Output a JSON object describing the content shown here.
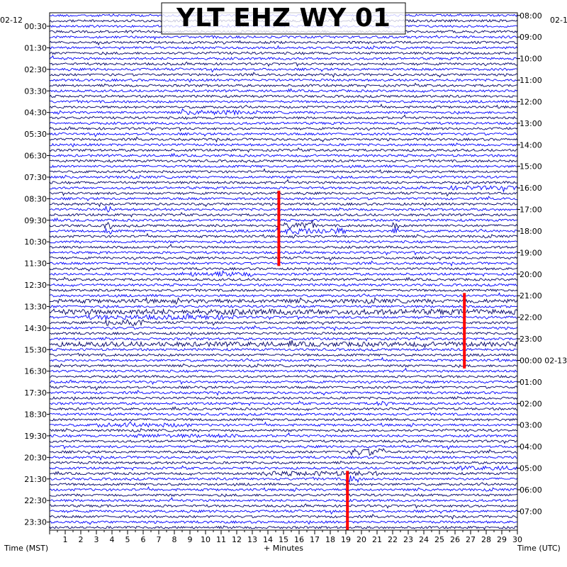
{
  "chart_data": {
    "type": "line",
    "title": "YLT EHZ WY 01",
    "xlabel": "+ Minutes",
    "left_axis_title": "Time (MST)",
    "right_axis_title": "Time (UTC)",
    "left_date": "02-12",
    "right_date": "02-1",
    "right_date_rollover": "02-13",
    "x_ticks": [
      "1",
      "2",
      "3",
      "4",
      "5",
      "6",
      "7",
      "8",
      "9",
      "10",
      "11",
      "12",
      "13",
      "14",
      "15",
      "16",
      "17",
      "18",
      "19",
      "20",
      "21",
      "22",
      "23",
      "24",
      "25",
      "26",
      "27",
      "28",
      "29",
      "30"
    ],
    "xlim": [
      0,
      30
    ],
    "rows_per_hour": 4,
    "left_time_labels": [
      "00:30",
      "01:30",
      "02:30",
      "03:30",
      "04:30",
      "05:30",
      "06:30",
      "07:30",
      "08:30",
      "09:30",
      "10:30",
      "11:30",
      "12:30",
      "13:30",
      "14:30",
      "15:30",
      "16:30",
      "17:30",
      "18:30",
      "19:30",
      "20:30",
      "21:30",
      "22:30",
      "23:30"
    ],
    "right_time_labels": [
      "08:00",
      "09:00",
      "10:00",
      "11:00",
      "12:00",
      "13:00",
      "14:00",
      "15:00",
      "16:00",
      "17:00",
      "18:00",
      "19:00",
      "20:00",
      "21:00",
      "22:00",
      "23:00",
      "00:00 02-13",
      "01:00",
      "02:00",
      "03:00",
      "04:00",
      "05:00",
      "06:00",
      "07:00"
    ],
    "trace_colors": [
      "#0000ff",
      "#000066"
    ],
    "event_color": "#ff0000",
    "events": [
      {
        "minute": 14.7,
        "row_start": 33,
        "row_end": 46
      },
      {
        "minute": 26.6,
        "row_start": 52,
        "row_end": 65
      },
      {
        "minute": 19.1,
        "row_start": 85,
        "row_end": 95
      }
    ],
    "activity": [
      {
        "row": 18,
        "minute_start": 8.5,
        "minute_end": 12.5,
        "level": 2.0
      },
      {
        "row": 32,
        "minute_start": 25.5,
        "minute_end": 30,
        "level": 1.8
      },
      {
        "row": 36,
        "minute_start": 3.6,
        "minute_end": 4.0,
        "level": 3.0
      },
      {
        "row": 39,
        "minute_start": 3.5,
        "minute_end": 4.0,
        "level": 3.0
      },
      {
        "row": 39,
        "minute_start": 14.6,
        "minute_end": 17,
        "level": 2.8
      },
      {
        "row": 39,
        "minute_start": 22,
        "minute_end": 22.4,
        "level": 3.0
      },
      {
        "row": 40,
        "minute_start": 3.5,
        "minute_end": 4.0,
        "level": 3.0
      },
      {
        "row": 40,
        "minute_start": 14.5,
        "minute_end": 19,
        "level": 2.6
      },
      {
        "row": 40,
        "minute_start": 22,
        "minute_end": 22.4,
        "level": 3.0
      },
      {
        "row": 48,
        "minute_start": 8.5,
        "minute_end": 13,
        "level": 2.0
      },
      {
        "row": 53,
        "minute_start": 0.5,
        "minute_end": 30,
        "level": 1.7
      },
      {
        "row": 55,
        "minute_start": 0.5,
        "minute_end": 30,
        "level": 2.3
      },
      {
        "row": 56,
        "minute_start": 2,
        "minute_end": 12,
        "level": 2.0
      },
      {
        "row": 57,
        "minute_start": 3.5,
        "minute_end": 6,
        "level": 2.8
      },
      {
        "row": 61,
        "minute_start": 0.5,
        "minute_end": 30,
        "level": 2.0
      },
      {
        "row": 72,
        "minute_start": 21,
        "minute_end": 22,
        "level": 2.0
      },
      {
        "row": 76,
        "minute_start": 3,
        "minute_end": 9,
        "level": 1.8
      },
      {
        "row": 78,
        "minute_start": 5,
        "minute_end": 12,
        "level": 1.6
      },
      {
        "row": 81,
        "minute_start": 19.3,
        "minute_end": 21.5,
        "level": 3.0
      },
      {
        "row": 84,
        "minute_start": 26,
        "minute_end": 30,
        "level": 1.8
      },
      {
        "row": 85,
        "minute_start": 13.5,
        "minute_end": 21,
        "level": 2.0
      },
      {
        "row": 86,
        "minute_start": 19,
        "minute_end": 19.8,
        "level": 3.2
      }
    ]
  }
}
